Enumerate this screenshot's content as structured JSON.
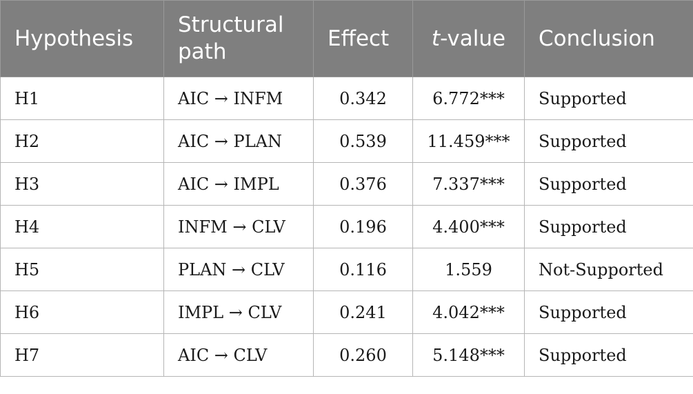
{
  "table": {
    "headers": {
      "hypothesis": "Hypothesis",
      "structural_path": "Structural path",
      "effect": "Effect",
      "t_value_italic": "t",
      "t_value_rest": "-value",
      "conclusion": "Conclusion"
    },
    "rows": [
      {
        "hypothesis": "H1",
        "path": "AIC → INFM",
        "effect": "0.342",
        "t_value": "6.772***",
        "conclusion": "Supported"
      },
      {
        "hypothesis": "H2",
        "path": "AIC → PLAN",
        "effect": "0.539",
        "t_value": "11.459***",
        "conclusion": "Supported"
      },
      {
        "hypothesis": "H3",
        "path": "AIC → IMPL",
        "effect": "0.376",
        "t_value": "7.337***",
        "conclusion": "Supported"
      },
      {
        "hypothesis": "H4",
        "path": "INFM → CLV",
        "effect": "0.196",
        "t_value": "4.400***",
        "conclusion": "Supported"
      },
      {
        "hypothesis": "H5",
        "path": "PLAN → CLV",
        "effect": "0.116",
        "t_value": "1.559",
        "conclusion": "Not-Supported"
      },
      {
        "hypothesis": "H6",
        "path": "IMPL → CLV",
        "effect": "0.241",
        "t_value": "4.042***",
        "conclusion": "Supported"
      },
      {
        "hypothesis": "H7",
        "path": "AIC → CLV",
        "effect": "0.260",
        "t_value": "5.148***",
        "conclusion": "Supported"
      }
    ]
  }
}
